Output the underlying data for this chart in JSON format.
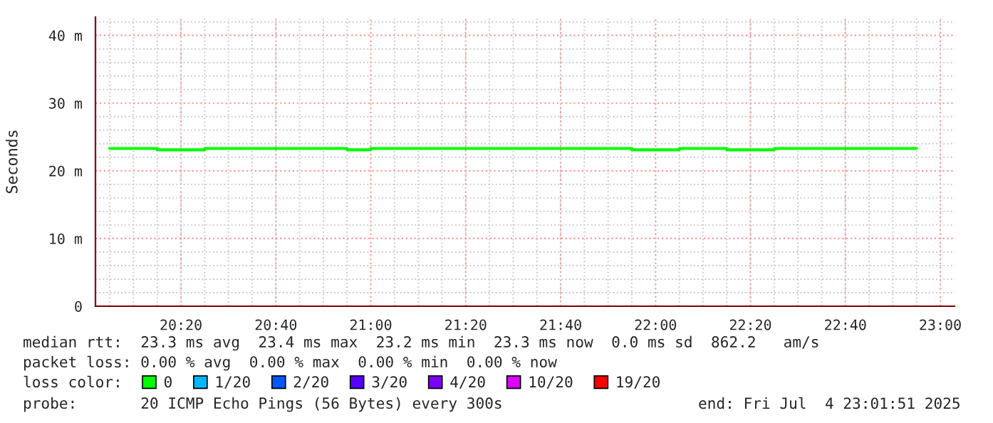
{
  "chart_data": {
    "type": "step",
    "ylabel": "Seconds",
    "x": [
      20.0833,
      20.1667,
      20.25,
      20.3333,
      20.4167,
      20.5,
      20.5833,
      20.6667,
      20.75,
      20.8333,
      20.9167,
      21.0,
      21.0833,
      21.1667,
      21.25,
      21.3333,
      21.4167,
      21.5,
      21.5833,
      21.6667,
      21.75,
      21.8333,
      21.9167,
      22.0,
      22.0833,
      22.1667,
      22.25,
      22.3333,
      22.4167,
      22.5,
      22.5833,
      22.6667,
      22.75,
      22.8333,
      22.9167
    ],
    "series": [
      {
        "name": "0",
        "color": "#00ff00",
        "values": [
          23.3,
          23.3,
          23.1,
          23.1,
          23.3,
          23.3,
          23.3,
          23.3,
          23.3,
          23.3,
          23.1,
          23.3,
          23.3,
          23.3,
          23.3,
          23.3,
          23.3,
          23.3,
          23.3,
          23.3,
          23.3,
          23.3,
          23.1,
          23.1,
          23.3,
          23.3,
          23.1,
          23.1,
          23.3,
          23.3,
          23.3,
          23.3,
          23.3,
          23.3,
          23.3
        ]
      },
      {
        "name": "1/20",
        "color": "#00b8ff",
        "values": [
          null,
          null,
          null,
          null,
          null,
          null,
          null,
          null,
          null,
          null,
          null,
          null,
          null,
          null,
          null,
          null,
          null,
          null,
          null,
          null,
          null,
          null,
          null,
          null,
          null,
          null,
          null,
          null,
          null,
          null,
          null,
          null,
          null,
          null,
          null
        ]
      },
      {
        "name": "2/20",
        "color": "#0059ff",
        "values": [
          null,
          null,
          null,
          null,
          null,
          null,
          null,
          null,
          null,
          null,
          null,
          null,
          null,
          null,
          null,
          null,
          null,
          null,
          null,
          null,
          null,
          null,
          null,
          null,
          null,
          null,
          null,
          null,
          null,
          null,
          null,
          null,
          null,
          null,
          null
        ]
      },
      {
        "name": "3/20",
        "color": "#5500ff",
        "values": [
          null,
          null,
          null,
          null,
          null,
          null,
          null,
          null,
          null,
          null,
          null,
          null,
          null,
          null,
          null,
          null,
          null,
          null,
          null,
          null,
          null,
          null,
          null,
          null,
          null,
          null,
          null,
          null,
          null,
          null,
          null,
          null,
          null,
          null,
          null
        ]
      },
      {
        "name": "4/20",
        "color": "#7e00ff",
        "values": [
          null,
          null,
          null,
          null,
          null,
          null,
          null,
          null,
          null,
          null,
          null,
          null,
          null,
          null,
          null,
          null,
          null,
          null,
          null,
          null,
          null,
          null,
          null,
          null,
          null,
          null,
          null,
          null,
          null,
          null,
          null,
          null,
          null,
          null,
          null
        ]
      },
      {
        "name": "10/20",
        "color": "#dd00ff",
        "values": [
          null,
          null,
          null,
          null,
          null,
          null,
          null,
          null,
          null,
          null,
          null,
          null,
          null,
          null,
          null,
          null,
          null,
          null,
          null,
          null,
          null,
          null,
          null,
          null,
          null,
          null,
          null,
          null,
          null,
          null,
          null,
          null,
          null,
          null,
          null
        ]
      },
      {
        "name": "19/20",
        "color": "#ff0000",
        "values": [
          null,
          null,
          null,
          null,
          null,
          null,
          null,
          null,
          null,
          null,
          null,
          null,
          null,
          null,
          null,
          null,
          null,
          null,
          null,
          null,
          null,
          null,
          null,
          null,
          null,
          null,
          null,
          null,
          null,
          null,
          null,
          null,
          null,
          null,
          null
        ]
      }
    ],
    "legend": "bottom",
    "legend_title": "loss color:",
    "xlim": [
      20.033,
      23.05
    ],
    "xticks": [
      {
        "value": 20.3333,
        "label": "20:20"
      },
      {
        "value": 20.6667,
        "label": "20:40"
      },
      {
        "value": 21.0,
        "label": "21:00"
      },
      {
        "value": 21.3333,
        "label": "21:20"
      },
      {
        "value": 21.6667,
        "label": "21:40"
      },
      {
        "value": 22.0,
        "label": "22:00"
      },
      {
        "value": 22.3333,
        "label": "22:20"
      },
      {
        "value": 22.6667,
        "label": "22:40"
      },
      {
        "value": 23.0,
        "label": "23:00"
      }
    ],
    "ylim": [
      0,
      42.7
    ],
    "yticks": [
      0,
      {
        "value": 10,
        "label": "10 m"
      },
      {
        "value": 20,
        "label": "20 m"
      },
      {
        "value": 30,
        "label": "30 m"
      },
      {
        "value": 40,
        "label": "40 m"
      }
    ],
    "grid": true,
    "annotations": [
      "median rtt:  23.3 ms avg  23.4 ms max  23.2 ms min  23.3 ms now  0.0 ms sd  862.2   am/s",
      "packet loss: 0.00 % avg  0.00 % max  0.00 % min  0.00 % now",
      "probe:       20 ICMP Echo Pings (56 Bytes) every 300s",
      "end: Fri Jul  4 23:01:51 2025"
    ]
  }
}
